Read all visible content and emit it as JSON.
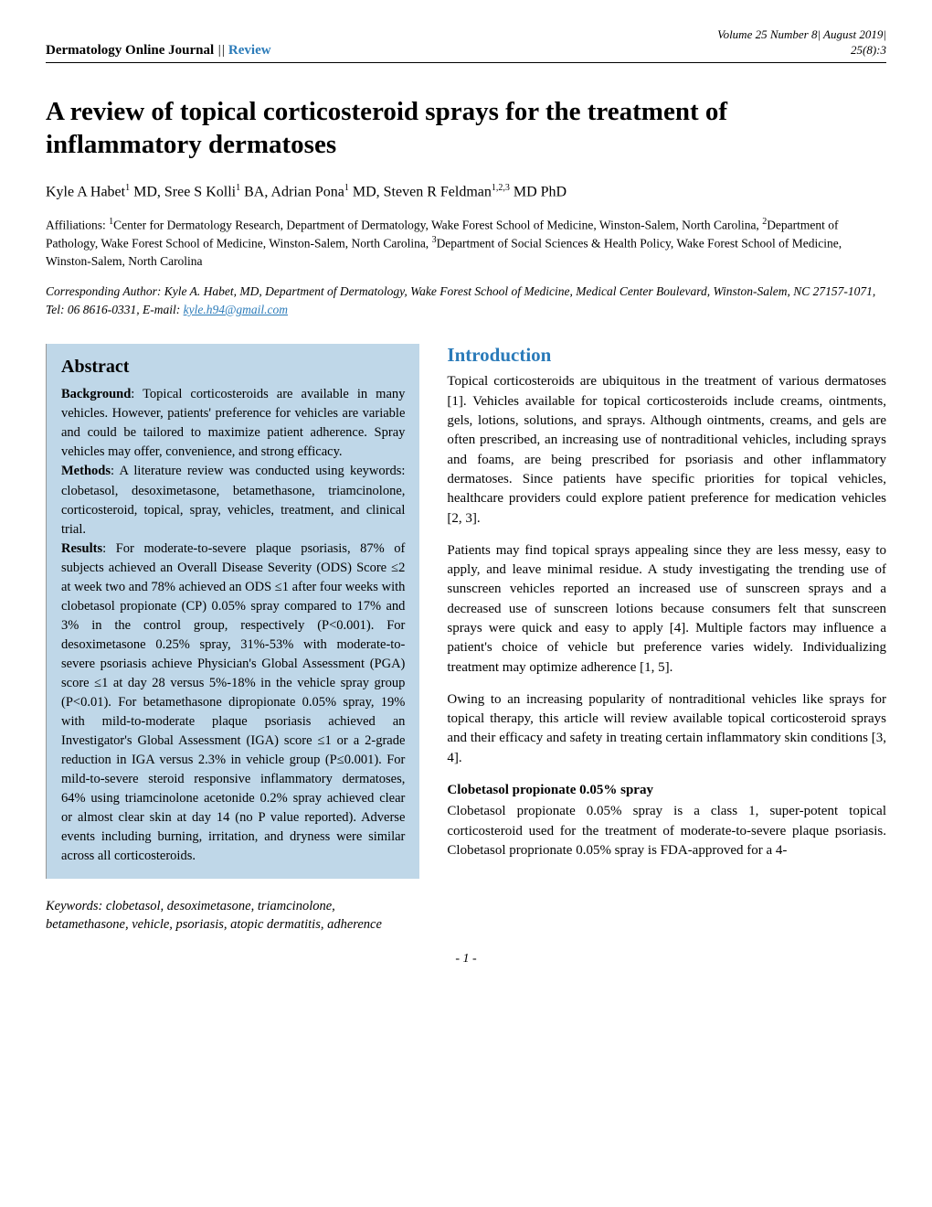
{
  "header": {
    "journal": "Dermatology Online Journal",
    "separator": " || ",
    "label": "Review",
    "volume_line1": "Volume 25 Number 8| August 2019|",
    "volume_line2": "25(8):3"
  },
  "title": "A review of topical corticosteroid sprays for the treatment of inflammatory dermatoses",
  "authors_html": "Kyle A Habet<sup>1</sup> MD, Sree S Kolli<sup>1</sup> BA, Adrian Pona<sup>1</sup> MD, Steven R Feldman<sup>1,2,3</sup> MD PhD",
  "affiliations_html": "Affiliations: <sup>1</sup>Center for Dermatology Research, Department of Dermatology, Wake Forest School of Medicine, Winston-Salem, North Carolina, <sup>2</sup>Department of Pathology, Wake Forest School of Medicine, Winston-Salem, North Carolina, <sup>3</sup>Department of Social Sciences & Health Policy, Wake Forest School of Medicine, Winston-Salem, North Carolina",
  "corresponding_pre": "Corresponding Author: Kyle A. Habet, MD, Department of Dermatology, Wake Forest School of Medicine, Medical Center Boulevard, Winston-Salem, NC 27157-1071, Tel: 06 8616-0331, E-mail: ",
  "corresponding_email": "kyle.h94@gmail.com",
  "abstract": {
    "heading": "Abstract",
    "body_html": "<b>Background</b>: Topical corticosteroids are available in many vehicles. However, patients' preference for vehicles are variable and could be tailored to maximize patient adherence. Spray vehicles may offer, convenience, and strong efficacy.<br><b>Methods</b>: A literature review was conducted using keywords: clobetasol, desoximetasone, betamethasone, triamcinolone, corticosteroid, topical, spray, vehicles, treatment, and clinical trial.<br><b>Results</b>: For moderate-to-severe plaque psoriasis, 87% of subjects achieved an Overall Disease Severity (ODS) Score ≤2 at week two and 78% achieved an ODS ≤1 after four weeks with clobetasol propionate (CP) 0.05% spray compared to 17% and 3% in the control group, respectively (P<0.001). For desoximetasone 0.25% spray, 31%-53% with moderate-to-severe psoriasis achieve Physician's Global Assessment (PGA) score ≤1 at day 28 versus 5%-18% in the vehicle spray group (P<0.01). For betamethasone dipropionate 0.05% spray, 19% with mild-to-moderate plaque psoriasis achieved an Investigator's Global Assessment (IGA) score ≤1 or a 2-grade reduction in IGA versus 2.3% in vehicle group (P≤0.001). For mild-to-severe steroid responsive inflammatory dermatoses, 64% using triamcinolone acetonide 0.2% spray achieved clear or almost clear skin at day 14 (no P value reported). Adverse events including burning, irritation, and dryness were similar across all corticosteroids."
  },
  "keywords": "Keywords: clobetasol, desoximetasone, triamcinolone, betamethasone, vehicle, psoriasis, atopic dermatitis, adherence",
  "intro": {
    "heading": "Introduction",
    "p1": "Topical corticosteroids are ubiquitous in the treatment of various dermatoses [1]. Vehicles available for topical corticosteroids include creams, ointments, gels, lotions, solutions, and sprays. Although ointments, creams, and gels are often prescribed, an increasing use of nontraditional vehicles, including sprays and foams, are being prescribed for psoriasis and other inflammatory dermatoses. Since patients have specific priorities for topical vehicles, healthcare providers could explore patient preference for medication vehicles [2, 3].",
    "p2": "Patients may find topical sprays appealing since they are less messy, easy to apply, and leave minimal residue. A study investigating the trending use of sunscreen vehicles reported an increased use of sunscreen sprays and a decreased use of sunscreen lotions because consumers felt that sunscreen sprays were quick and easy to apply [4]. Multiple factors may influence a patient's choice of vehicle but preference varies widely. Individualizing treatment may optimize adherence [1, 5].",
    "p3": "Owing to an increasing popularity of nontraditional vehicles like sprays for topical therapy, this article will review available topical corticosteroid sprays and their efficacy and safety in treating certain inflammatory skin conditions [3, 4].",
    "sub1_heading": "Clobetasol propionate 0.05% spray",
    "sub1_body": "Clobetasol propionate 0.05% spray is a class 1, super-potent topical corticosteroid used for the treatment of moderate-to-severe plaque psoriasis. Clobetasol proprionate 0.05% spray is FDA-approved for a 4-"
  },
  "page_num": "- 1 -",
  "colors": {
    "accent": "#2b7bb9",
    "abstract_bg": "#bfd7e8"
  }
}
